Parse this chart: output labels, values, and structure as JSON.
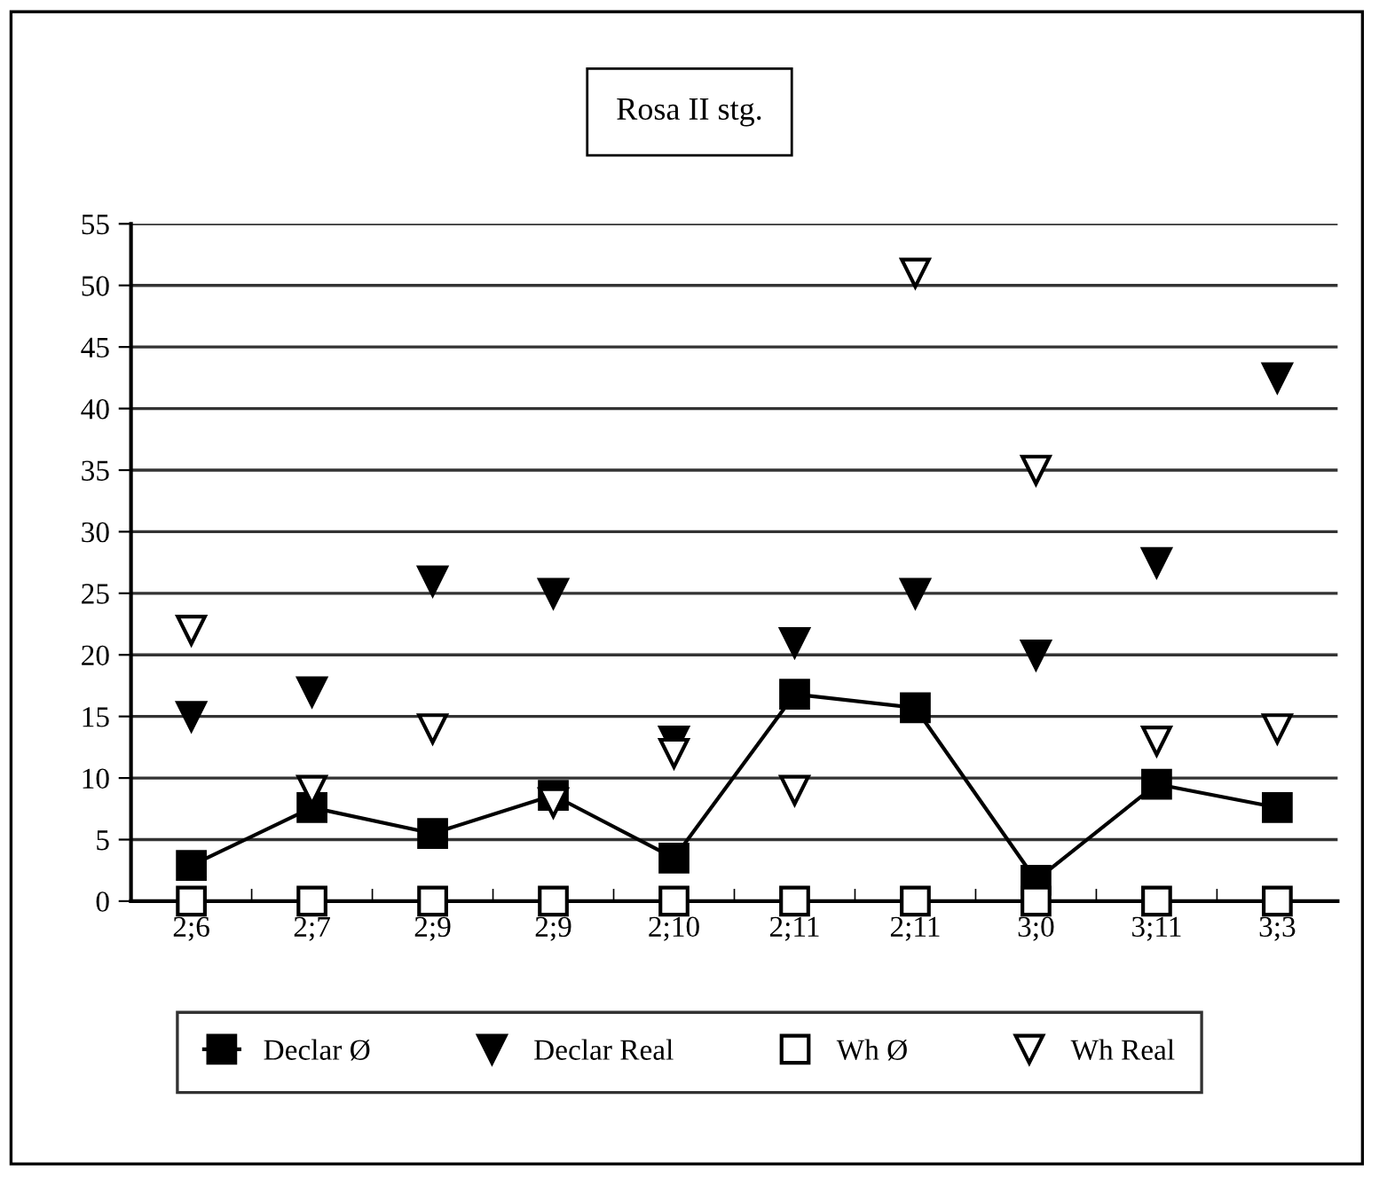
{
  "chart_data": {
    "type": "scatter",
    "title": "Rosa II stg.",
    "categories": [
      "2;6",
      "2;7",
      "2;9",
      "2;9",
      "2;10",
      "2;11",
      "2;11",
      "3;0",
      "3;11",
      "3;3"
    ],
    "series": [
      {
        "name": "Declar Ø",
        "type": "line",
        "marker": "square",
        "line_style": "solid",
        "color": "#000000",
        "values": [
          2.9,
          7.6,
          5.5,
          8.6,
          3.5,
          16.8,
          15.7,
          1.7,
          9.5,
          7.6
        ]
      },
      {
        "name": "Declar Real",
        "marker": "triangle",
        "color": "#000000",
        "values": [
          15,
          17,
          26,
          25,
          13,
          21,
          25,
          20,
          27.5,
          42.5
        ]
      },
      {
        "name": "Wh Ø",
        "marker": "square",
        "color": "#ffffff",
        "values": [
          0,
          0,
          0,
          0,
          0,
          0,
          0,
          0,
          0,
          0
        ]
      },
      {
        "name": "Wh Real",
        "marker": "triangle",
        "color": "#ffffff",
        "values": [
          22,
          9,
          14,
          8,
          12,
          9,
          51,
          35,
          13,
          14
        ]
      }
    ],
    "ylim": [
      0,
      55
    ],
    "yticks": [
      0,
      5,
      10,
      15,
      20,
      25,
      30,
      35,
      40,
      45,
      50,
      55
    ],
    "grid": "y",
    "legend": "bottom"
  }
}
